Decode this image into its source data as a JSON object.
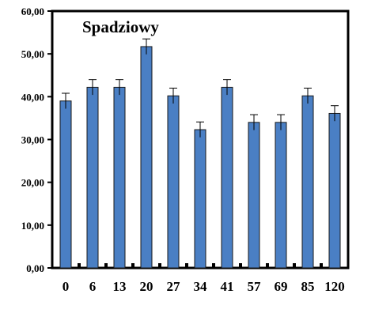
{
  "chart_data": {
    "type": "bar",
    "title": "Spadziowy",
    "categories": [
      "0",
      "6",
      "13",
      "20",
      "27",
      "34",
      "41",
      "57",
      "69",
      "85",
      "120"
    ],
    "values": [
      39.0,
      42.2,
      42.2,
      51.7,
      40.2,
      32.3,
      42.2,
      34.0,
      34.0,
      40.2,
      36.1
    ],
    "errors": [
      1.8,
      1.8,
      1.8,
      1.8,
      1.8,
      1.8,
      1.8,
      1.8,
      1.8,
      1.8,
      1.8
    ],
    "ylim": [
      0,
      60
    ],
    "yticks": [
      "0,00",
      "10,00",
      "20,00",
      "30,00",
      "40,00",
      "50,00",
      "60,00"
    ],
    "xlabel": "",
    "ylabel": "",
    "grid": false,
    "colors": {
      "bar": "#4a7fc4",
      "bar_edge": "#1a1a1a",
      "axis": "#000000"
    }
  }
}
